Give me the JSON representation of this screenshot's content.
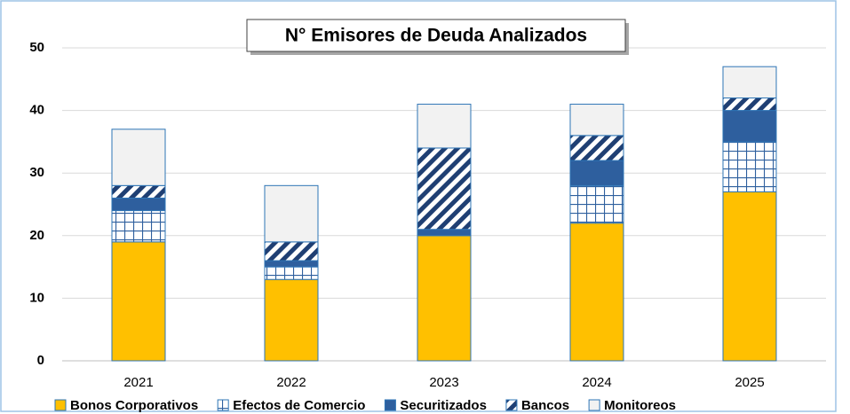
{
  "chart_data": {
    "type": "stacked_bar",
    "title": "N° Emisores de Deuda Analizados",
    "categories": [
      "2021",
      "2022",
      "2023",
      "2024",
      "2025"
    ],
    "series": [
      {
        "name": "Bonos Corporativos",
        "color": "#ffc000",
        "pattern": "solid",
        "values": [
          19,
          13,
          20,
          22,
          27
        ]
      },
      {
        "name": "Efectos de Comercio",
        "color": "#2e5f9e",
        "pattern": "grid",
        "values": [
          5,
          2,
          0,
          6,
          8
        ]
      },
      {
        "name": "Securitizados",
        "color": "#2e5f9e",
        "pattern": "solid",
        "values": [
          2,
          1,
          1,
          4,
          5
        ]
      },
      {
        "name": "Bancos",
        "color": "#1f3f73",
        "pattern": "diagonal",
        "values": [
          2,
          3,
          13,
          4,
          2
        ]
      },
      {
        "name": "Monitoreos",
        "color": "#f2f2f2",
        "pattern": "solid",
        "values": [
          9,
          9,
          7,
          5,
          5
        ]
      }
    ],
    "ylim": [
      0,
      50
    ],
    "yticks": [
      0,
      10,
      20,
      30,
      40,
      50
    ],
    "grid": true,
    "legend": "bottom"
  }
}
